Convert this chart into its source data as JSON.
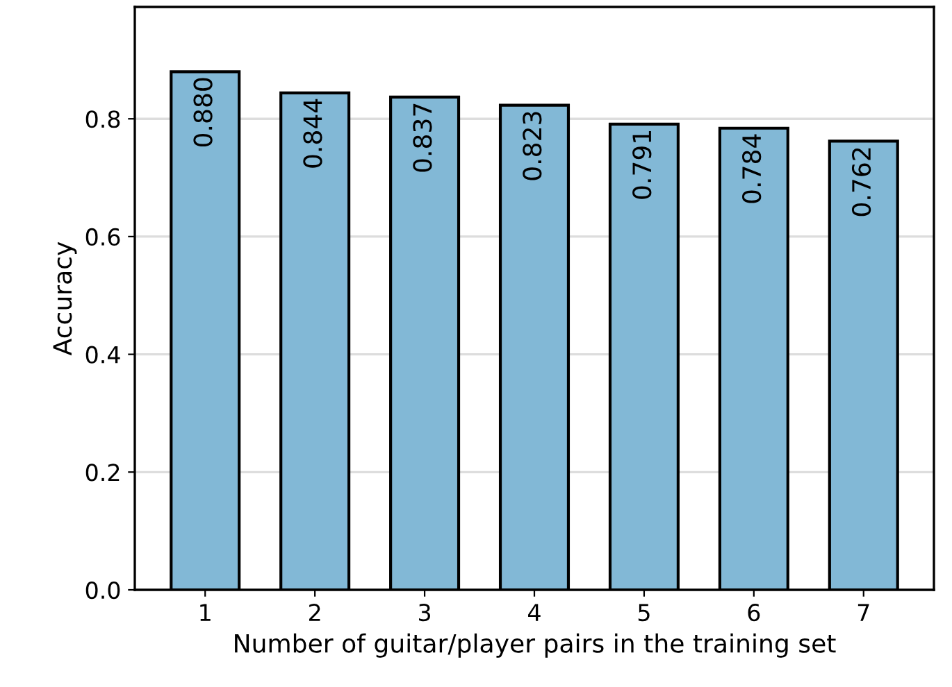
{
  "chart_data": {
    "type": "bar",
    "xlabel": "Number of guitar/player pairs in the training set",
    "ylabel": "Accuracy",
    "categories": [
      "1",
      "2",
      "3",
      "4",
      "5",
      "6",
      "7"
    ],
    "values": [
      0.88,
      0.844,
      0.837,
      0.823,
      0.791,
      0.784,
      0.762
    ],
    "value_labels": [
      "0.880",
      "0.844",
      "0.837",
      "0.823",
      "0.791",
      "0.784",
      "0.762"
    ],
    "color": "#82b8d6",
    "ylim": [
      0,
      0.99
    ],
    "yticks": [
      {
        "value": 0,
        "label": "0.0"
      },
      0.2,
      0.4,
      0.6,
      0.8
    ],
    "grid": "y"
  }
}
